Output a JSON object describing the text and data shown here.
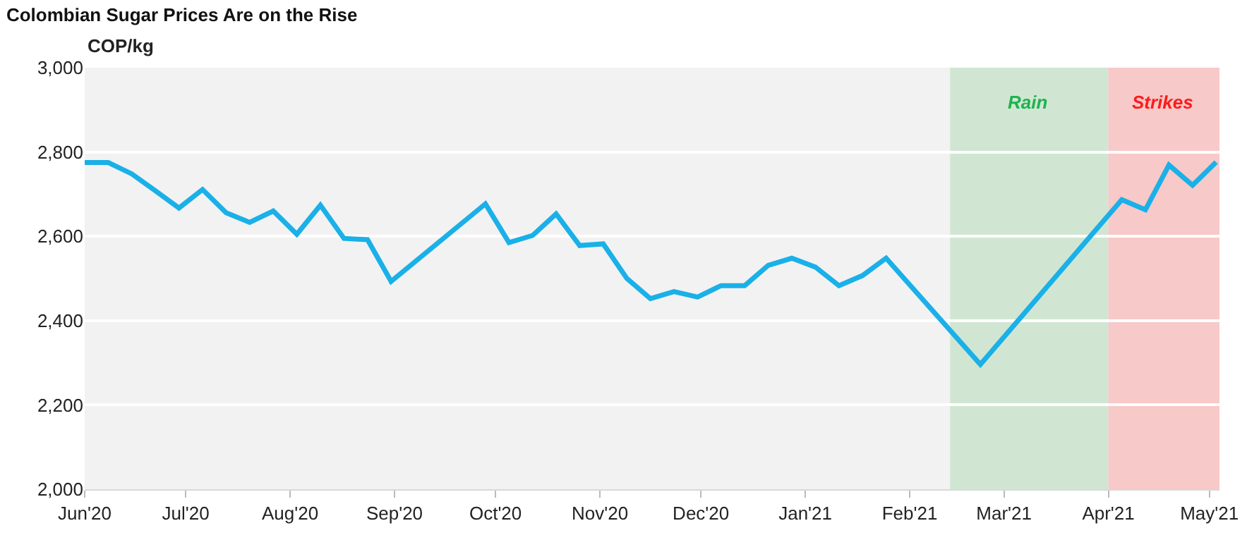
{
  "chart_data": {
    "type": "line",
    "title": "Colombian Sugar Prices Are on the Rise",
    "ylabel": "COP/kg",
    "x": [
      "2020-06-01",
      "2020-06-08",
      "2020-06-15",
      "2020-06-22",
      "2020-06-29",
      "2020-07-06",
      "2020-07-13",
      "2020-07-20",
      "2020-07-27",
      "2020-08-03",
      "2020-08-10",
      "2020-08-17",
      "2020-08-24",
      "2020-08-31",
      "2020-09-28",
      "2020-10-05",
      "2020-10-12",
      "2020-10-19",
      "2020-10-26",
      "2020-11-02",
      "2020-11-09",
      "2020-11-16",
      "2020-11-23",
      "2020-11-30",
      "2020-12-07",
      "2020-12-14",
      "2020-12-21",
      "2020-12-28",
      "2021-01-04",
      "2021-01-11",
      "2021-01-18",
      "2021-01-25",
      "2021-02-22",
      "2021-04-05",
      "2021-04-12",
      "2021-04-19",
      "2021-04-26",
      "2021-05-03"
    ],
    "series": [
      {
        "color": "#1ab0e8",
        "values": [
          2775,
          2775,
          2748,
          2708,
          2667,
          2711,
          2656,
          2633,
          2660,
          2605,
          2674,
          2595,
          2592,
          2493,
          2677,
          2585,
          2602,
          2653,
          2578,
          2582,
          2500,
          2452,
          2469,
          2456,
          2483,
          2483,
          2531,
          2548,
          2527,
          2483,
          2507,
          2548,
          2296,
          2687,
          2663,
          2769,
          2721,
          2776
        ]
      }
    ],
    "xlim": [
      "2020-06-01",
      "2021-05-04"
    ],
    "xticks": [
      {
        "value": "2020-06-01",
        "label": "Jun'20"
      },
      {
        "value": "2020-07-01",
        "label": "Jul'20"
      },
      {
        "value": "2020-08-01",
        "label": "Aug'20"
      },
      {
        "value": "2020-09-01",
        "label": "Sep'20"
      },
      {
        "value": "2020-10-01",
        "label": "Oct'20"
      },
      {
        "value": "2020-11-01",
        "label": "Nov'20"
      },
      {
        "value": "2020-12-01",
        "label": "Dec'20"
      },
      {
        "value": "2021-01-01",
        "label": "Jan'21"
      },
      {
        "value": "2021-02-01",
        "label": "Feb'21"
      },
      {
        "value": "2021-03-01",
        "label": "Mar'21"
      },
      {
        "value": "2021-04-01",
        "label": "Apr'21"
      },
      {
        "value": "2021-05-01",
        "label": "May'21"
      }
    ],
    "ylim": [
      2000,
      3000
    ],
    "yticks": [
      {
        "value": 2000,
        "label": "2,000"
      },
      {
        "value": 2200,
        "label": "2,200"
      },
      {
        "value": 2400,
        "label": "2,400"
      },
      {
        "value": 2600,
        "label": "2,600"
      },
      {
        "value": 2800,
        "label": "2,800"
      },
      {
        "value": 3000,
        "label": "3,000"
      }
    ],
    "bands": [
      {
        "axis": "x",
        "from": "2021-02-13",
        "to": "2021-04-01",
        "label": "Rain",
        "color": "#d0e6d3"
      },
      {
        "axis": "x",
        "from": "2021-04-01",
        "to": "2021-05-04",
        "label": "Strikes",
        "color": "#f7c9c8"
      }
    ],
    "grid": "y",
    "marker": "none",
    "line_style": "solid"
  }
}
